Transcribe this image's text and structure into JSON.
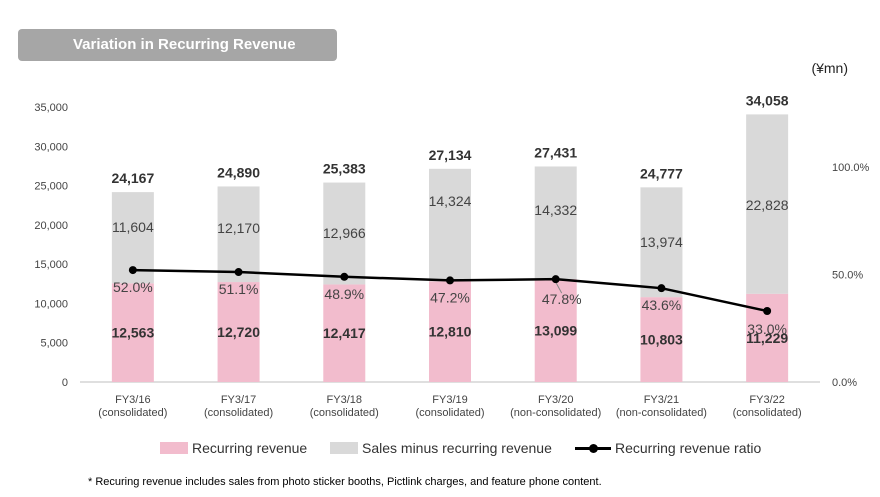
{
  "header": {
    "title": "Variation in Recurring Revenue",
    "unit": "(¥mn)"
  },
  "colors": {
    "recurring": "#f2bccd",
    "sales_minus": "#d9d9d9",
    "ratio_line": "#000000"
  },
  "chart_data": {
    "type": "bar",
    "stacked": true,
    "categories": [
      [
        "FY3/16",
        "(consolidated)"
      ],
      [
        "FY3/17",
        "(consolidated)"
      ],
      [
        "FY3/18",
        "(consolidated)"
      ],
      [
        "FY3/19",
        "(consolidated)"
      ],
      [
        "FY3/20",
        "(non-consolidated)"
      ],
      [
        "FY3/21",
        "(non-consolidated)"
      ],
      [
        "FY3/22",
        "(consolidated)"
      ]
    ],
    "series": [
      {
        "name": "Recurring revenue",
        "values": [
          12563,
          12720,
          12417,
          12810,
          13099,
          10803,
          11229
        ],
        "labels": [
          "12,563",
          "12,720",
          "12,417",
          "12,810",
          "13,099",
          "10,803",
          "11,229"
        ]
      },
      {
        "name": "Sales minus recurring revenue",
        "values": [
          11604,
          12170,
          12966,
          14324,
          14332,
          13974,
          22828
        ],
        "labels": [
          "11,604",
          "12,170",
          "12,966",
          "14,324",
          "14,332",
          "13,974",
          "22,828"
        ]
      },
      {
        "name": "Recurring revenue ratio",
        "axis": "right",
        "values": [
          52.0,
          51.1,
          48.9,
          47.2,
          47.8,
          43.6,
          33.0
        ],
        "labels": [
          "52.0%",
          "51.1%",
          "48.9%",
          "47.2%",
          "47.8%",
          "43.6%",
          "33.0%"
        ]
      }
    ],
    "totals": [
      24167,
      24890,
      25383,
      27134,
      27431,
      24777,
      34058
    ],
    "total_labels": [
      "24,167",
      "24,890",
      "25,383",
      "27,134",
      "27,431",
      "24,777",
      "34,058"
    ],
    "y_left": {
      "range": [
        0,
        35000
      ],
      "ticks": [
        0,
        5000,
        10000,
        15000,
        20000,
        25000,
        30000,
        35000
      ],
      "tick_labels": [
        "0",
        "5,000",
        "10,000",
        "15,000",
        "20,000",
        "25,000",
        "30,000",
        "35,000"
      ]
    },
    "y_right": {
      "range": [
        0,
        127.8
      ],
      "ticks": [
        0,
        50,
        100
      ],
      "tick_labels": [
        "0.0%",
        "50.0%",
        "100.0%"
      ]
    },
    "legend_position": "bottom",
    "grid": false
  },
  "footnote": "* Recuring revenue includes sales from photo sticker booths, Pictlink charges, and feature phone content."
}
